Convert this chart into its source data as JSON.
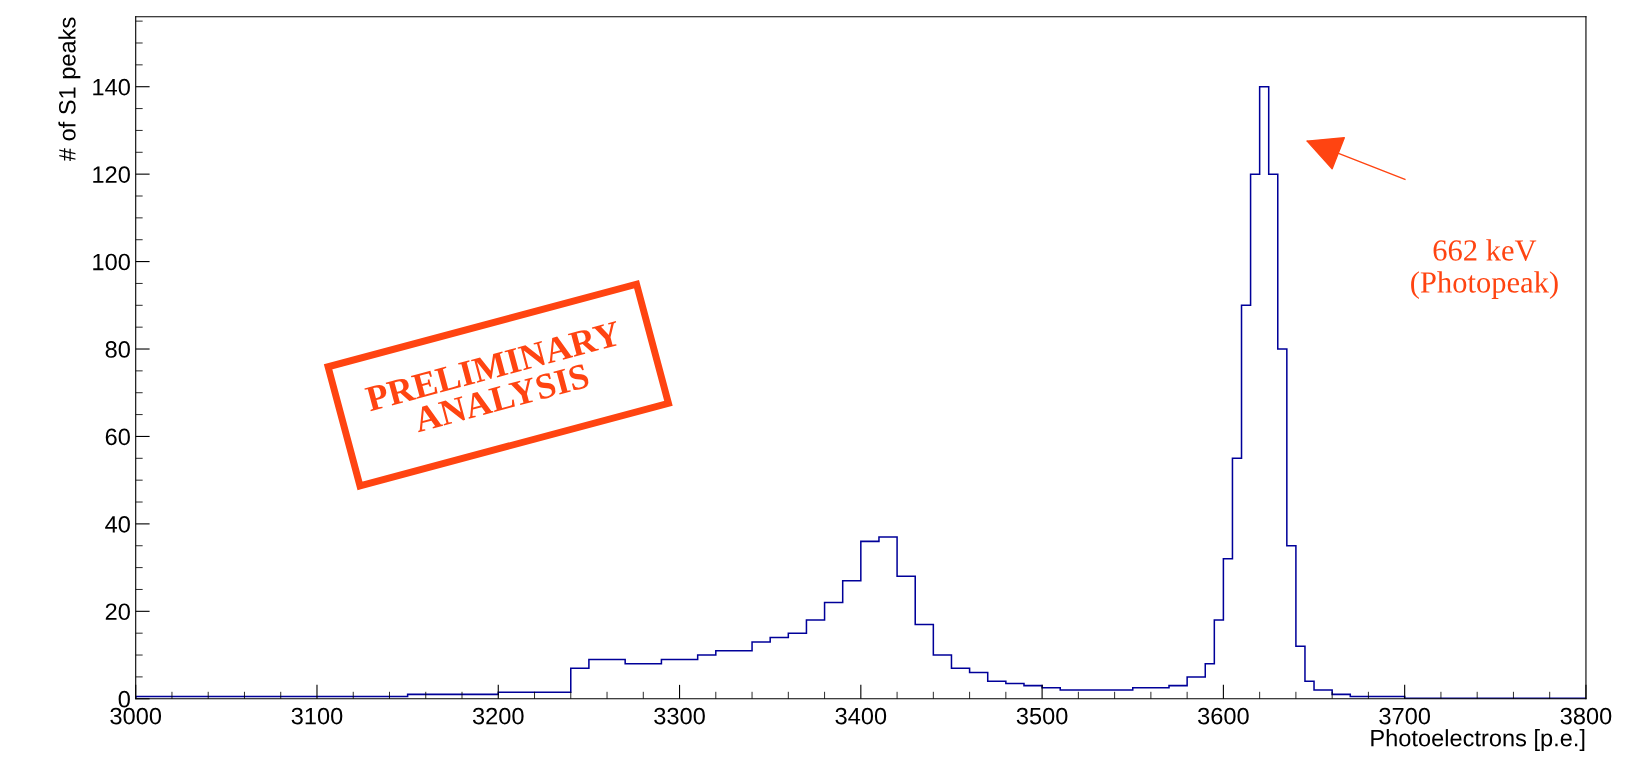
{
  "chart_data": {
    "type": "histogram",
    "xlabel": "Photoelectrons [p.e.]",
    "ylabel": "# of S1 peaks",
    "color": "#000099",
    "bins": [
      3000,
      3050,
      3100,
      3150,
      3200,
      3240,
      3250,
      3260,
      3270,
      3280,
      3290,
      3300,
      3310,
      3320,
      3330,
      3340,
      3350,
      3360,
      3370,
      3380,
      3390,
      3400,
      3410,
      3420,
      3430,
      3440,
      3450,
      3460,
      3470,
      3480,
      3490,
      3500,
      3510,
      3520,
      3530,
      3540,
      3550,
      3560,
      3570,
      3580,
      3590,
      3595,
      3600,
      3605,
      3610,
      3615,
      3620,
      3625,
      3630,
      3635,
      3640,
      3645,
      3650,
      3660,
      3670,
      3700,
      3800
    ],
    "values": [
      0.5,
      0.5,
      0.5,
      1,
      1.5,
      7,
      9,
      9,
      8,
      8,
      9,
      9,
      10,
      11,
      11,
      13,
      14,
      15,
      18,
      22,
      27,
      36,
      37,
      28,
      17,
      10,
      7,
      6,
      4,
      3.5,
      3,
      2.5,
      2,
      2,
      2,
      2,
      2.5,
      2.5,
      3,
      5,
      8,
      18,
      32,
      55,
      90,
      120,
      140,
      120,
      80,
      35,
      12,
      4,
      2,
      1,
      0.5,
      0.1
    ],
    "xlim": [
      3000,
      3800
    ],
    "xticks": [
      3000,
      3100,
      3200,
      3300,
      3400,
      3500,
      3600,
      3700,
      3800
    ],
    "ylim": [
      0,
      156
    ],
    "yticks": [
      0,
      20,
      40,
      60,
      80,
      100,
      120,
      140
    ],
    "grid": false,
    "legend": false,
    "annotations": [
      "PRELIMINARY\nANALYSIS",
      "662 keV\n(Photopeak)"
    ]
  }
}
